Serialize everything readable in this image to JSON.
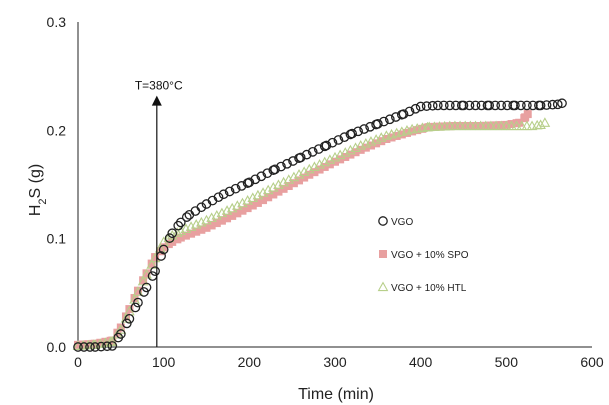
{
  "chart_data": {
    "type": "scatter",
    "title": "",
    "xlabel": "Time (min)",
    "ylabel_main": "H",
    "ylabel_sub": "2",
    "ylabel_rest": "S (g)",
    "xlim": [
      0,
      600
    ],
    "ylim": [
      0,
      0.3
    ],
    "xticks": [
      0,
      100,
      200,
      300,
      400,
      500,
      600
    ],
    "xtick_labels": [
      "0",
      "100",
      "200",
      "300",
      "400",
      "500",
      "600"
    ],
    "yticks": [
      0,
      0.1,
      0.2,
      0.3
    ],
    "ytick_labels": [
      "0.0",
      "0.1",
      "0.2",
      "0.3"
    ],
    "grid": false,
    "legend_position": "right",
    "annotation": {
      "text": "T=380°C",
      "x": 92,
      "y_from": 0.0,
      "y_to": 0.232
    },
    "series": [
      {
        "name": "VGO",
        "marker": "circle-open",
        "color": "#222222",
        "points": [
          [
            0,
            0.0
          ],
          [
            20,
            0.0
          ],
          [
            40,
            0.001
          ],
          [
            50,
            0.012
          ],
          [
            60,
            0.026
          ],
          [
            70,
            0.041
          ],
          [
            80,
            0.055
          ],
          [
            90,
            0.07
          ],
          [
            100,
            0.09
          ],
          [
            110,
            0.105
          ],
          [
            120,
            0.115
          ],
          [
            130,
            0.122
          ],
          [
            150,
            0.132
          ],
          [
            170,
            0.141
          ],
          [
            200,
            0.152
          ],
          [
            230,
            0.164
          ],
          [
            260,
            0.175
          ],
          [
            290,
            0.186
          ],
          [
            320,
            0.197
          ],
          [
            350,
            0.206
          ],
          [
            380,
            0.215
          ],
          [
            400,
            0.222
          ],
          [
            420,
            0.223
          ],
          [
            450,
            0.223
          ],
          [
            480,
            0.223
          ],
          [
            510,
            0.223
          ],
          [
            540,
            0.223
          ],
          [
            560,
            0.224
          ],
          [
            565,
            0.225
          ]
        ]
      },
      {
        "name": "VGO + 10% SPO",
        "marker": "square-filled",
        "color": "#e8a0a0",
        "points": [
          [
            0,
            0.002
          ],
          [
            20,
            0.003
          ],
          [
            40,
            0.006
          ],
          [
            50,
            0.018
          ],
          [
            60,
            0.035
          ],
          [
            70,
            0.052
          ],
          [
            80,
            0.068
          ],
          [
            90,
            0.083
          ],
          [
            100,
            0.092
          ],
          [
            110,
            0.097
          ],
          [
            120,
            0.101
          ],
          [
            150,
            0.11
          ],
          [
            180,
            0.121
          ],
          [
            210,
            0.133
          ],
          [
            240,
            0.146
          ],
          [
            270,
            0.159
          ],
          [
            300,
            0.171
          ],
          [
            330,
            0.182
          ],
          [
            360,
            0.192
          ],
          [
            390,
            0.199
          ],
          [
            410,
            0.203
          ],
          [
            440,
            0.204
          ],
          [
            470,
            0.204
          ],
          [
            500,
            0.205
          ],
          [
            515,
            0.207
          ],
          [
            522,
            0.212
          ],
          [
            525,
            0.215
          ]
        ]
      },
      {
        "name": "VGO + 10% HTL",
        "marker": "triangle-open",
        "color": "#b7cf8a",
        "points": [
          [
            0,
            0.001
          ],
          [
            20,
            0.002
          ],
          [
            40,
            0.005
          ],
          [
            50,
            0.016
          ],
          [
            60,
            0.033
          ],
          [
            70,
            0.051
          ],
          [
            80,
            0.067
          ],
          [
            90,
            0.082
          ],
          [
            100,
            0.097
          ],
          [
            110,
            0.103
          ],
          [
            120,
            0.107
          ],
          [
            150,
            0.117
          ],
          [
            180,
            0.128
          ],
          [
            210,
            0.14
          ],
          [
            240,
            0.152
          ],
          [
            270,
            0.164
          ],
          [
            300,
            0.175
          ],
          [
            330,
            0.186
          ],
          [
            360,
            0.195
          ],
          [
            390,
            0.201
          ],
          [
            410,
            0.203
          ],
          [
            440,
            0.204
          ],
          [
            470,
            0.204
          ],
          [
            500,
            0.204
          ],
          [
            530,
            0.204
          ],
          [
            540,
            0.205
          ],
          [
            545,
            0.207
          ]
        ]
      }
    ]
  }
}
